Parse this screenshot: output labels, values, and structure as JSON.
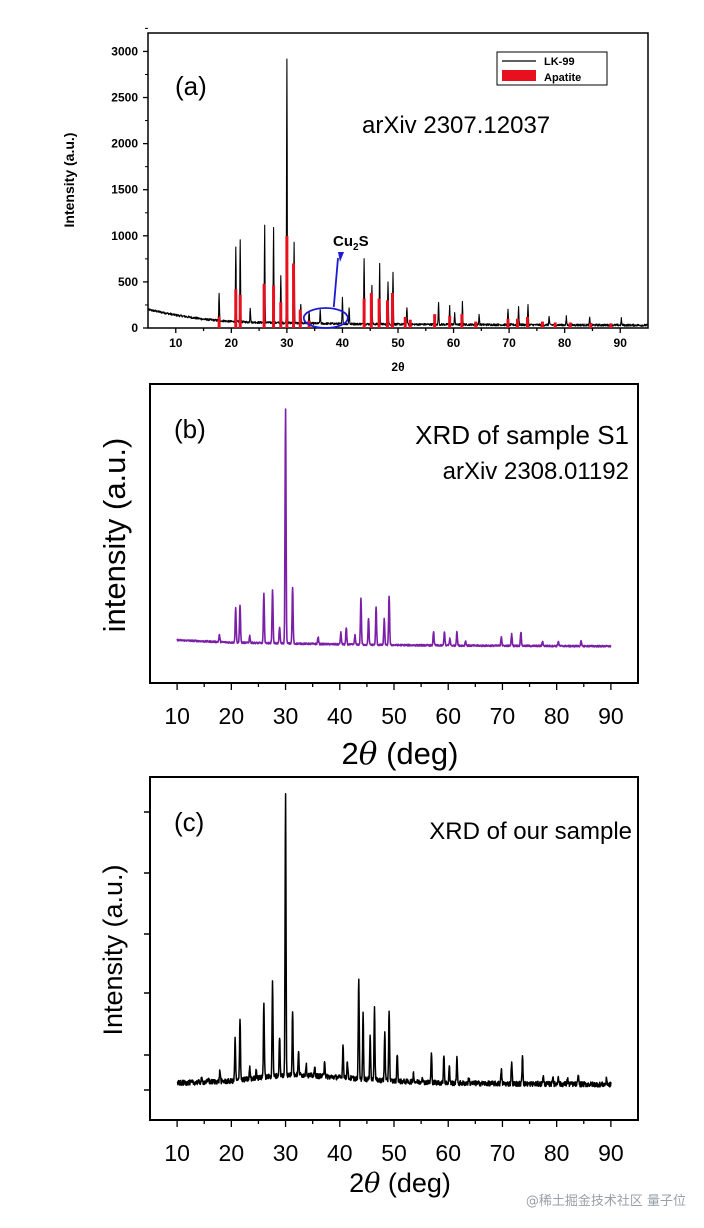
{
  "watermark": "@稀土掘金技术社区  量子位",
  "colors": {
    "lk99": "#000000",
    "apatite": "#e8101e",
    "s1": "#7b1fa8",
    "ours": "#000000",
    "arrow": "#1b1bd6"
  },
  "chart_data": [
    {
      "type": "line",
      "panel_label": "(a)",
      "annotation": "arXiv 2307.12037",
      "callout": {
        "text_main": "Cu",
        "text_sub": "2",
        "text_tail": "S",
        "x": 37
      },
      "xlabel": "2θ",
      "ylabel": "Intensity (a.u.)",
      "xlim": [
        5,
        95
      ],
      "ylim": [
        0,
        3200
      ],
      "xticks": [
        "10",
        "20",
        "30",
        "40",
        "50",
        "60",
        "70",
        "80",
        "90"
      ],
      "yticks": [
        "0",
        "500",
        "1000",
        "1500",
        "2000",
        "2500",
        "3000"
      ],
      "legend_position": "top-right",
      "series": [
        {
          "name": "LK-99",
          "style": "line",
          "background": [
            [
              5,
              200
            ],
            [
              10,
              140
            ],
            [
              15,
              95
            ],
            [
              20,
              70
            ],
            [
              25,
              60
            ],
            [
              30,
              55
            ],
            [
              40,
              45
            ],
            [
              50,
              40
            ],
            [
              60,
              38
            ],
            [
              70,
              35
            ],
            [
              80,
              33
            ],
            [
              95,
              30
            ]
          ],
          "peaks": [
            [
              17.8,
              290
            ],
            [
              20.8,
              820
            ],
            [
              21.6,
              880
            ],
            [
              23.4,
              160
            ],
            [
              26,
              1050
            ],
            [
              27.6,
              1040
            ],
            [
              28.9,
              500
            ],
            [
              30,
              2860
            ],
            [
              31.3,
              880
            ],
            [
              32.5,
              200
            ],
            [
              34,
              120
            ],
            [
              36,
              140
            ],
            [
              40,
              300
            ],
            [
              41.2,
              180
            ],
            [
              43.9,
              720
            ],
            [
              45.3,
              420
            ],
            [
              46.7,
              650
            ],
            [
              48.2,
              470
            ],
            [
              49.1,
              560
            ],
            [
              51.6,
              190
            ],
            [
              57.3,
              250
            ],
            [
              59.3,
              200
            ],
            [
              60.2,
              130
            ],
            [
              61.6,
              240
            ],
            [
              64.6,
              110
            ],
            [
              69.8,
              160
            ],
            [
              71.7,
              200
            ],
            [
              73.4,
              220
            ],
            [
              77.2,
              90
            ],
            [
              80.3,
              90
            ],
            [
              84.5,
              80
            ],
            [
              90.2,
              70
            ]
          ]
        },
        {
          "name": "Apatite",
          "style": "sticks",
          "sticks": [
            [
              17.8,
              120
            ],
            [
              20.8,
              420
            ],
            [
              21.6,
              360
            ],
            [
              25.9,
              480
            ],
            [
              27.6,
              460
            ],
            [
              28.9,
              280
            ],
            [
              30,
              1000
            ],
            [
              31.2,
              700
            ],
            [
              32.4,
              200
            ],
            [
              34,
              80
            ],
            [
              43.9,
              320
            ],
            [
              45.2,
              380
            ],
            [
              46.6,
              320
            ],
            [
              48.1,
              300
            ],
            [
              49,
              380
            ],
            [
              51.3,
              120
            ],
            [
              52.2,
              90
            ],
            [
              56.6,
              150
            ],
            [
              59.3,
              130
            ],
            [
              61.5,
              150
            ],
            [
              64,
              70
            ],
            [
              69.8,
              100
            ],
            [
              71.5,
              100
            ],
            [
              73.3,
              120
            ],
            [
              76,
              70
            ],
            [
              78.3,
              60
            ],
            [
              81,
              60
            ],
            [
              84.7,
              55
            ],
            [
              88.3,
              50
            ]
          ]
        }
      ]
    },
    {
      "type": "line",
      "panel_label": "(b)",
      "annotation_line1": "XRD of sample S1",
      "annotation_line2": "arXiv 2308.01192",
      "xlabel_main": "2",
      "xlabel_var": "θ",
      "xlabel_unit": " (deg)",
      "ylabel": "intensity (a.u.)",
      "xlim": [
        5,
        95
      ],
      "ylim": [
        0,
        100
      ],
      "xticks": [
        "10",
        "20",
        "30",
        "40",
        "50",
        "60",
        "70",
        "80",
        "90"
      ],
      "series": [
        {
          "name": "",
          "background": [
            [
              10,
              4.2
            ],
            [
              20,
              3.2
            ],
            [
              30,
              2.8
            ],
            [
              40,
              2.4
            ],
            [
              50,
              2.1
            ],
            [
              60,
              1.9
            ],
            [
              70,
              1.8
            ],
            [
              80,
              1.7
            ],
            [
              90,
              1.6
            ]
          ],
          "peaks": [
            [
              17.8,
              3
            ],
            [
              20.8,
              15
            ],
            [
              21.6,
              16
            ],
            [
              23.4,
              3
            ],
            [
              26,
              21
            ],
            [
              27.6,
              23
            ],
            [
              28.9,
              7
            ],
            [
              30,
              100
            ],
            [
              31.3,
              24
            ],
            [
              36,
              3
            ],
            [
              40.2,
              5
            ],
            [
              41.2,
              7
            ],
            [
              42.8,
              4
            ],
            [
              43.9,
              20
            ],
            [
              45.3,
              11
            ],
            [
              46.7,
              16
            ],
            [
              48.2,
              11
            ],
            [
              49.1,
              21
            ],
            [
              57.3,
              6
            ],
            [
              59.3,
              6
            ],
            [
              60.3,
              3
            ],
            [
              61.6,
              6
            ],
            [
              63.2,
              2
            ],
            [
              69.8,
              4
            ],
            [
              71.7,
              5
            ],
            [
              73.4,
              6
            ],
            [
              77.4,
              2
            ],
            [
              80.3,
              2
            ],
            [
              84.5,
              2
            ]
          ]
        }
      ]
    },
    {
      "type": "line",
      "panel_label": "(c)",
      "annotation": "XRD of our sample",
      "xlabel_main": "2",
      "xlabel_var": "θ",
      "xlabel_unit": " (deg)",
      "ylabel": "Intensity (a.u.)",
      "xlim": [
        5,
        95
      ],
      "ylim": [
        0,
        100
      ],
      "xticks": [
        "10",
        "20",
        "30",
        "40",
        "50",
        "60",
        "70",
        "80",
        "90"
      ],
      "series": [
        {
          "name": "",
          "background": [
            [
              10,
              3.5
            ],
            [
              20,
              4.2
            ],
            [
              28,
              6
            ],
            [
              32,
              6.5
            ],
            [
              40,
              5.5
            ],
            [
              50,
              4.2
            ],
            [
              60,
              3.5
            ],
            [
              70,
              3.3
            ],
            [
              90,
              3
            ]
          ],
          "peaks": [
            [
              14.5,
              1
            ],
            [
              15.8,
              1
            ],
            [
              17.9,
              4
            ],
            [
              20.7,
              15
            ],
            [
              21.6,
              22
            ],
            [
              23.4,
              4
            ],
            [
              24.6,
              3
            ],
            [
              26,
              27
            ],
            [
              27.6,
              34
            ],
            [
              28.9,
              14
            ],
            [
              30,
              100
            ],
            [
              31.3,
              23
            ],
            [
              32.4,
              8
            ],
            [
              33.8,
              4
            ],
            [
              35.4,
              3
            ],
            [
              37.2,
              6
            ],
            [
              40.6,
              12
            ],
            [
              41.4,
              6
            ],
            [
              43.5,
              36
            ],
            [
              44.3,
              23
            ],
            [
              45.6,
              16
            ],
            [
              46.4,
              25
            ],
            [
              48.3,
              17
            ],
            [
              49.1,
              25
            ],
            [
              50.6,
              10
            ],
            [
              53.6,
              3
            ],
            [
              55.2,
              2
            ],
            [
              56.9,
              10
            ],
            [
              59.2,
              10
            ],
            [
              60.2,
              6
            ],
            [
              61.6,
              9
            ],
            [
              63.8,
              2
            ],
            [
              69.8,
              5
            ],
            [
              71.7,
              8
            ],
            [
              73.7,
              10
            ],
            [
              77.5,
              3
            ],
            [
              79.3,
              3
            ],
            [
              80.3,
              3
            ],
            [
              82,
              2
            ],
            [
              84,
              3
            ],
            [
              89.2,
              2
            ]
          ]
        }
      ]
    }
  ]
}
